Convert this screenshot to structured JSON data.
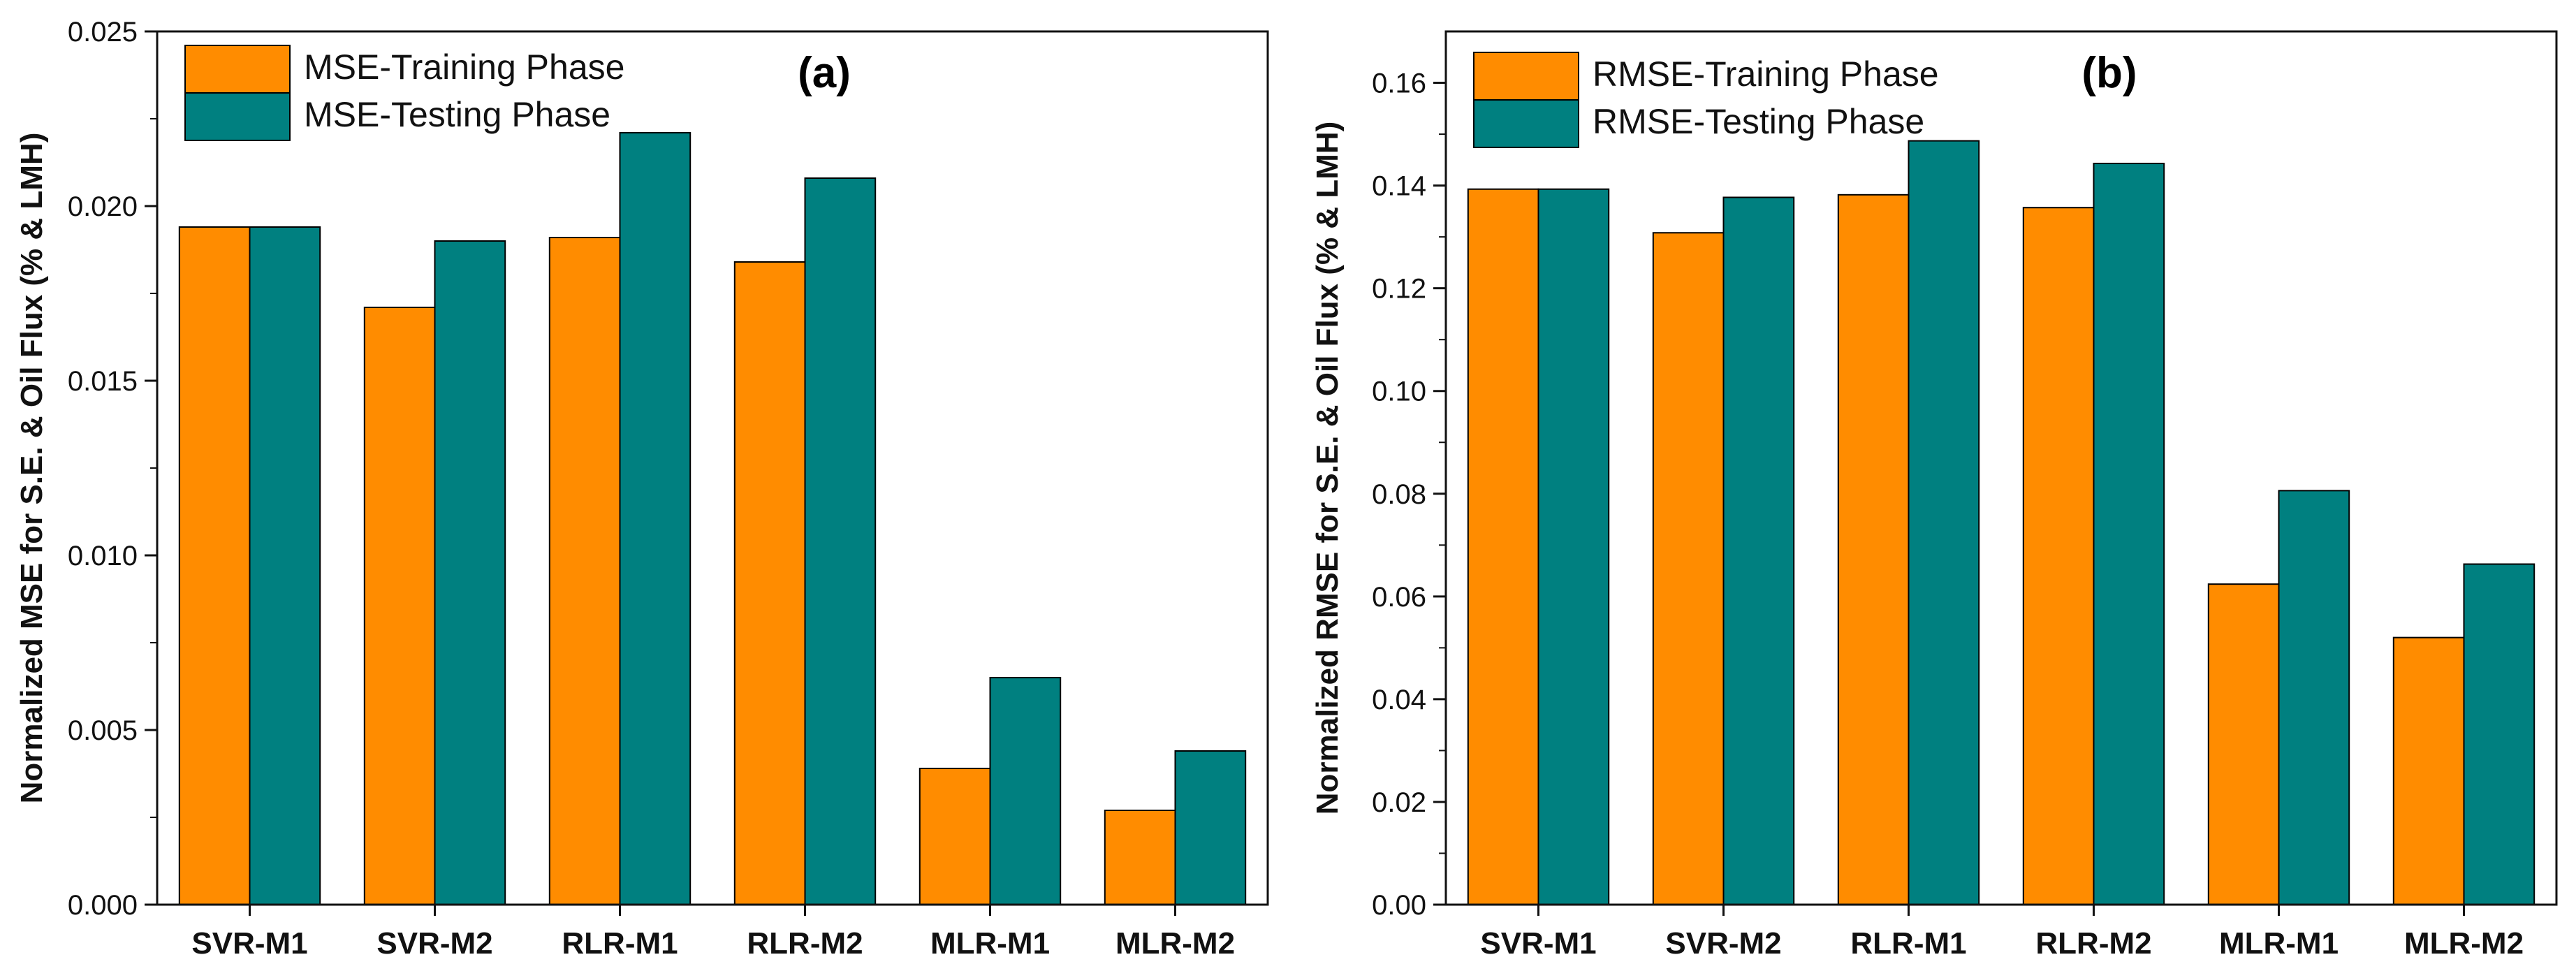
{
  "colors": {
    "training": "#FF8C00",
    "testing": "#008080",
    "axis": "#111111"
  },
  "chart_data": [
    {
      "type": "bar",
      "panel_label": "(a)",
      "categories": [
        "SVR-M1",
        "SVR-M2",
        "RLR-M1",
        "RLR-M2",
        "MLR-M1",
        "MLR-M2"
      ],
      "series": [
        {
          "name": "MSE-Training Phase",
          "values": [
            0.0194,
            0.0171,
            0.0191,
            0.0184,
            0.0039,
            0.0027
          ]
        },
        {
          "name": "MSE-Testing Phase",
          "values": [
            0.0194,
            0.019,
            0.0221,
            0.0208,
            0.0065,
            0.0044
          ]
        }
      ],
      "ylabel": "Normalized MSE for S.E. & Oil Flux (% & LMH)",
      "xlabel": "",
      "ylim": [
        0,
        0.025
      ],
      "yticks": [
        0,
        0.005,
        0.01,
        0.015,
        0.02,
        0.025
      ],
      "ytick_labels": [
        "0.000",
        "0.005",
        "0.010",
        "0.015",
        "0.020",
        "0.025"
      ],
      "legend": "top-left"
    },
    {
      "type": "bar",
      "panel_label": "(b)",
      "categories": [
        "SVR-M1",
        "SVR-M2",
        "RLR-M1",
        "RLR-M2",
        "MLR-M1",
        "MLR-M2"
      ],
      "series": [
        {
          "name": "RMSE-Training Phase",
          "values": [
            0.1393,
            0.1308,
            0.1382,
            0.1357,
            0.0624,
            0.052
          ]
        },
        {
          "name": "RMSE-Testing Phase",
          "values": [
            0.1393,
            0.1377,
            0.1487,
            0.1443,
            0.0806,
            0.0663
          ]
        }
      ],
      "ylabel": "Normalized RMSE for S.E. & Oil Flux (% & LMH)",
      "xlabel": "",
      "ylim": [
        0,
        0.17
      ],
      "yticks": [
        0,
        0.02,
        0.04,
        0.06,
        0.08,
        0.1,
        0.12,
        0.14,
        0.16
      ],
      "ytick_labels": [
        "0.00",
        "0.02",
        "0.04",
        "0.06",
        "0.08",
        "0.10",
        "0.12",
        "0.14",
        "0.16"
      ],
      "legend": "top-left"
    }
  ]
}
